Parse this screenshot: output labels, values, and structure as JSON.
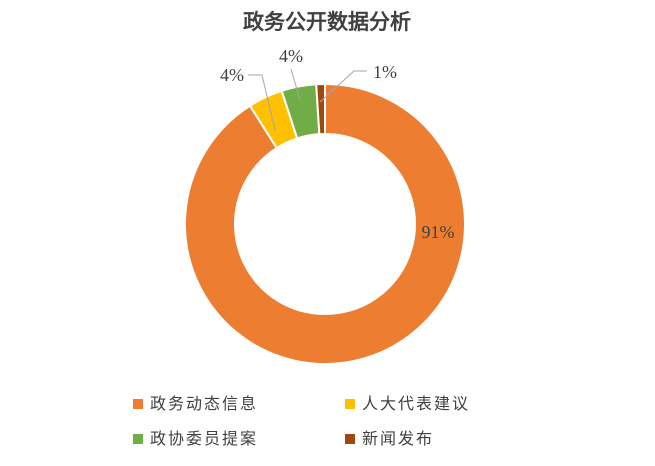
{
  "chart_data": {
    "type": "pie",
    "title": "政务公开数据分析",
    "categories": [
      "政务动态信息",
      "人大代表建议",
      "政协委员提案",
      "新闻发布"
    ],
    "values": [
      91,
      4,
      4,
      1
    ],
    "labels": [
      "91%",
      "4%",
      "4%",
      "1%"
    ],
    "colors": [
      "#ED7D31",
      "#FFC000",
      "#70AD47",
      "#9E480E"
    ],
    "donut": true,
    "legend": "bottom"
  }
}
